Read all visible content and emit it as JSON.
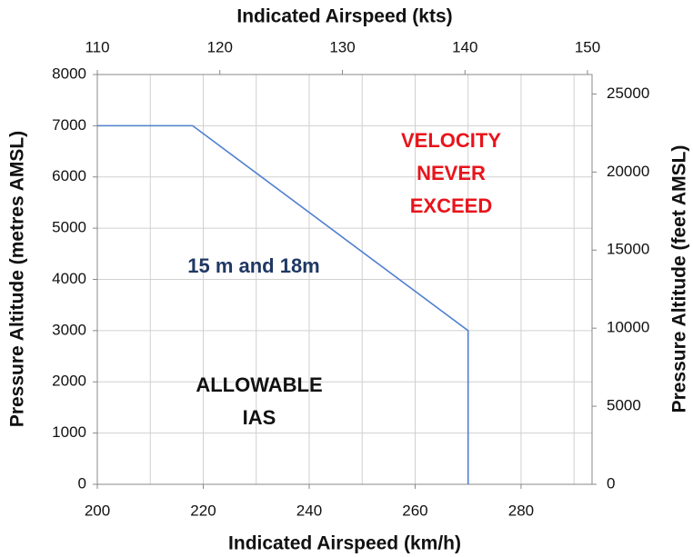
{
  "chart_data": {
    "type": "line",
    "x_label": "Indicated Airspeed (km/h)",
    "x2_label": "Indicated Airspeed (kts)",
    "y_label": "Pressure Altitude (metres AMSL)",
    "y2_label": "Pressure Altitude (feet AMSL)",
    "x": [
      200,
      218,
      270,
      270
    ],
    "series": [
      {
        "color": "#4f7fd0",
        "values": [
          7000,
          7000,
          3000,
          0
        ]
      }
    ],
    "xlim": [
      200,
      293.4
    ],
    "xticks": [
      200,
      220,
      240,
      260,
      280
    ],
    "x_minor_ticks": [
      210,
      230,
      250,
      270,
      290
    ],
    "x2lim": [
      110,
      150
    ],
    "x2ticks": [
      110,
      120,
      130,
      140,
      150
    ],
    "ylim": [
      0,
      8000
    ],
    "yticks": [
      0,
      1000,
      2000,
      3000,
      4000,
      5000,
      6000,
      7000,
      8000
    ],
    "y2lim": [
      0,
      26247
    ],
    "y2ticks": [
      0,
      5000,
      10000,
      15000,
      20000,
      25000
    ],
    "grid": true,
    "annotations": [
      {
        "lines": [
          "VELOCITY",
          "NEVER",
          "EXCEED"
        ],
        "color": "#e8141b"
      },
      {
        "lines": [
          "15 m and 18m"
        ],
        "color": "#1f3864"
      },
      {
        "lines": [
          "ALLOWABLE",
          "IAS"
        ],
        "color": "#111111"
      }
    ]
  }
}
